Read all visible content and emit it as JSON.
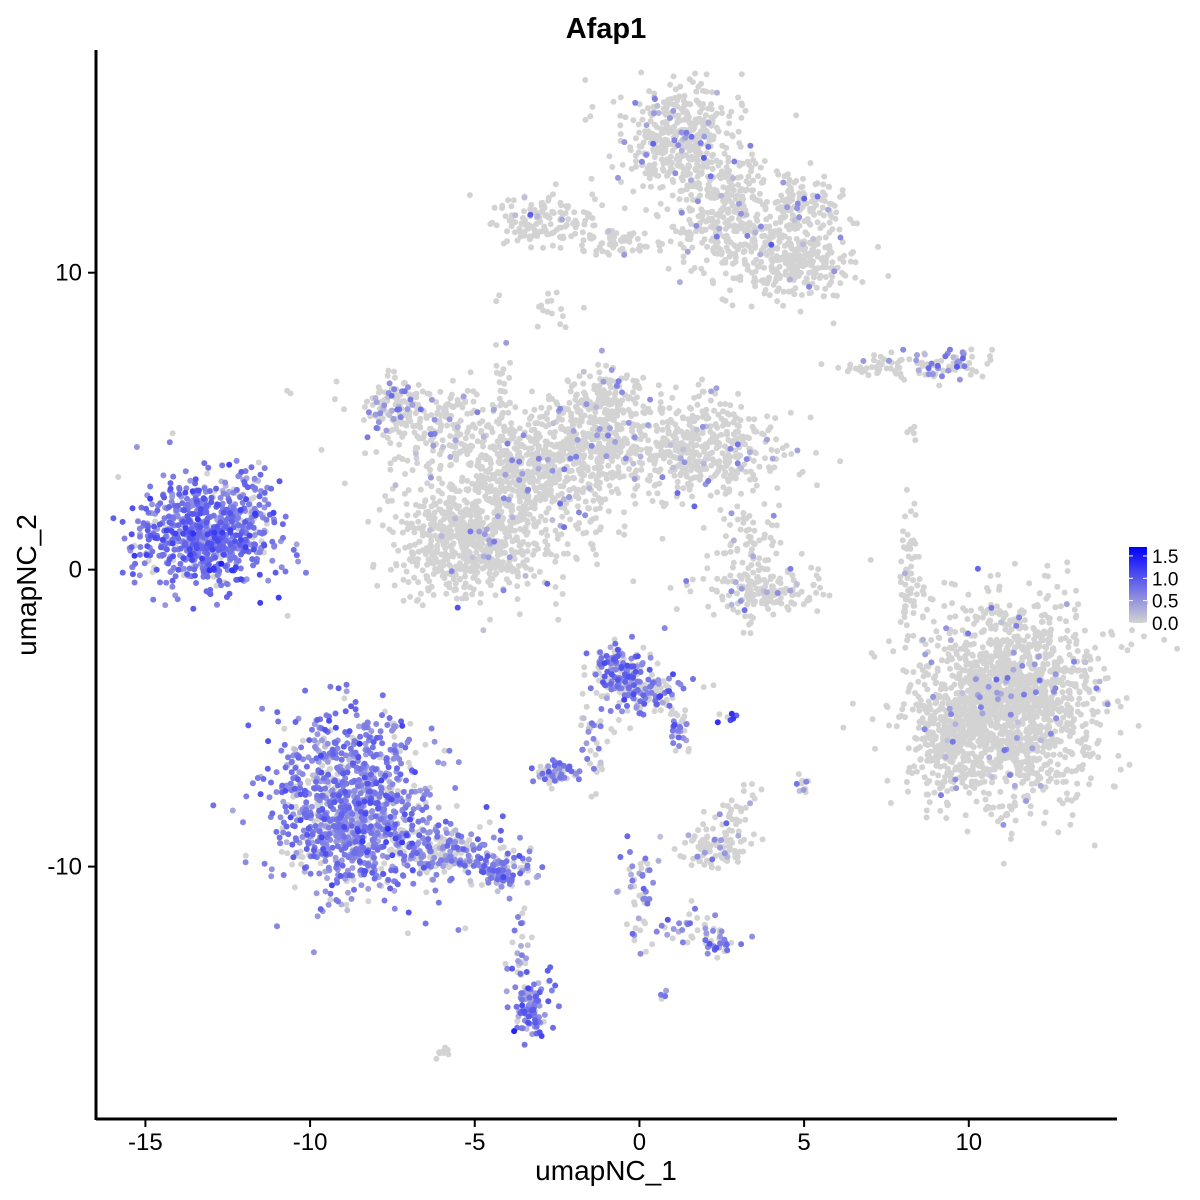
{
  "chart_data": {
    "type": "scatter",
    "title": "Afap1",
    "xlabel": "umapNC_1",
    "ylabel": "umapNC_2",
    "xlim": [
      -16.5,
      14.5
    ],
    "ylim": [
      -18.5,
      17.5
    ],
    "x_ticks": [
      -15,
      -10,
      -5,
      0,
      5,
      10
    ],
    "x_tick_labels": [
      "-15",
      "-10",
      "-5",
      "0",
      "5",
      "10"
    ],
    "y_ticks": [
      -10,
      0,
      10
    ],
    "y_tick_labels": [
      "-10",
      "0",
      "10"
    ],
    "grid": false,
    "color_scale": {
      "low_color": "#d3d3d3",
      "high_color": "#0000ff",
      "min": 0.0,
      "max": 1.7,
      "legend_ticks": [
        0.0,
        0.5,
        1.0,
        1.5
      ],
      "legend_labels": [
        "0.0",
        "0.5",
        "1.0",
        "1.5"
      ],
      "legend_position": "right"
    },
    "clusters": [
      {
        "cx": -13.2,
        "cy": 1.2,
        "sx": 1.05,
        "sy": 0.95,
        "n": 700,
        "p_expr": 0.92,
        "mean_expr": 0.75
      },
      {
        "cx": -11.8,
        "cy": 1.7,
        "sx": 0.35,
        "sy": 0.7,
        "n": 60,
        "p_expr": 0.6,
        "mean_expr": 0.55
      },
      {
        "cx": -8.7,
        "cy": -8.0,
        "sx": 1.2,
        "sy": 1.5,
        "n": 1100,
        "p_expr": 0.78,
        "mean_expr": 0.65
      },
      {
        "cx": -6.0,
        "cy": -9.6,
        "sx": 1.0,
        "sy": 0.45,
        "n": 220,
        "p_expr": 0.65,
        "mean_expr": 0.6
      },
      {
        "cx": -4.2,
        "cy": -10.2,
        "sx": 0.5,
        "sy": 0.3,
        "n": 90,
        "p_expr": 0.7,
        "mean_expr": 0.6
      },
      {
        "cx": -3.3,
        "cy": -14.8,
        "sx": 0.3,
        "sy": 0.55,
        "n": 90,
        "p_expr": 0.9,
        "mean_expr": 0.7
      },
      {
        "cx": -3.6,
        "cy": -12.8,
        "sx": 0.2,
        "sy": 0.9,
        "n": 25,
        "p_expr": 0.5,
        "mean_expr": 0.5
      },
      {
        "cx": -5.2,
        "cy": 1.0,
        "sx": 1.15,
        "sy": 1.0,
        "n": 700,
        "p_expr": 0.04,
        "mean_expr": 0.45
      },
      {
        "cx": -3.6,
        "cy": 3.2,
        "sx": 1.0,
        "sy": 0.9,
        "n": 350,
        "p_expr": 0.05,
        "mean_expr": 0.45
      },
      {
        "cx": -1.6,
        "cy": 4.0,
        "sx": 1.0,
        "sy": 0.8,
        "n": 350,
        "p_expr": 0.05,
        "mean_expr": 0.45
      },
      {
        "cx": -6.2,
        "cy": 4.8,
        "sx": 1.1,
        "sy": 0.8,
        "n": 220,
        "p_expr": 0.1,
        "mean_expr": 0.45
      },
      {
        "cx": -7.5,
        "cy": 5.5,
        "sx": 0.4,
        "sy": 0.5,
        "n": 80,
        "p_expr": 0.4,
        "mean_expr": 0.5
      },
      {
        "cx": -4.2,
        "cy": 5.8,
        "sx": 0.2,
        "sy": 1.3,
        "n": 30,
        "p_expr": 0.05,
        "mean_expr": 0.4
      },
      {
        "cx": -1.2,
        "cy": 5.6,
        "sx": 0.7,
        "sy": 0.6,
        "n": 160,
        "p_expr": 0.08,
        "mean_expr": 0.45
      },
      {
        "cx": 1.8,
        "cy": 4.1,
        "sx": 1.3,
        "sy": 0.85,
        "n": 450,
        "p_expr": 0.05,
        "mean_expr": 0.45
      },
      {
        "cx": -1.9,
        "cy": 1.6,
        "sx": 0.8,
        "sy": 0.5,
        "n": 40,
        "p_expr": 0.15,
        "mean_expr": 0.45
      },
      {
        "cx": 1.2,
        "cy": 14.5,
        "sx": 0.9,
        "sy": 0.9,
        "n": 420,
        "p_expr": 0.06,
        "mean_expr": 0.45
      },
      {
        "cx": 2.6,
        "cy": 12.0,
        "sx": 0.9,
        "sy": 1.0,
        "n": 320,
        "p_expr": 0.06,
        "mean_expr": 0.45
      },
      {
        "cx": 4.6,
        "cy": 10.4,
        "sx": 0.9,
        "sy": 0.7,
        "n": 280,
        "p_expr": 0.05,
        "mean_expr": 0.45
      },
      {
        "cx": 5.0,
        "cy": 12.2,
        "sx": 0.6,
        "sy": 0.5,
        "n": 120,
        "p_expr": 0.06,
        "mean_expr": 0.45
      },
      {
        "cx": -2.8,
        "cy": 11.7,
        "sx": 0.8,
        "sy": 0.4,
        "n": 140,
        "p_expr": 0.03,
        "mean_expr": 0.45
      },
      {
        "cx": -0.6,
        "cy": 11.0,
        "sx": 0.8,
        "sy": 0.2,
        "n": 60,
        "p_expr": 0.03,
        "mean_expr": 0.45
      },
      {
        "cx": -2.7,
        "cy": 8.8,
        "sx": 0.3,
        "sy": 0.35,
        "n": 15,
        "p_expr": 0.0,
        "mean_expr": 0.4
      },
      {
        "cx": 7.3,
        "cy": 6.9,
        "sx": 0.7,
        "sy": 0.18,
        "n": 45,
        "p_expr": 0.08,
        "mean_expr": 0.45
      },
      {
        "cx": 9.4,
        "cy": 7.0,
        "sx": 0.6,
        "sy": 0.3,
        "n": 70,
        "p_expr": 0.3,
        "mean_expr": 0.6
      },
      {
        "cx": 8.2,
        "cy": 4.7,
        "sx": 0.2,
        "sy": 0.3,
        "n": 6,
        "p_expr": 0.0,
        "mean_expr": 0.4
      },
      {
        "cx": 3.3,
        "cy": 0.6,
        "sx": 0.45,
        "sy": 0.9,
        "n": 90,
        "p_expr": 0.04,
        "mean_expr": 0.45
      },
      {
        "cx": 3.8,
        "cy": -0.7,
        "sx": 0.9,
        "sy": 0.35,
        "n": 140,
        "p_expr": 0.08,
        "mean_expr": 0.45
      },
      {
        "cx": 8.2,
        "cy": -0.2,
        "sx": 0.15,
        "sy": 1.2,
        "n": 60,
        "p_expr": 0.02,
        "mean_expr": 0.4
      },
      {
        "cx": 11.2,
        "cy": -4.5,
        "sx": 1.4,
        "sy": 1.6,
        "n": 1700,
        "p_expr": 0.04,
        "mean_expr": 0.45
      },
      {
        "cx": 9.3,
        "cy": -5.8,
        "sx": 0.5,
        "sy": 0.9,
        "n": 200,
        "p_expr": 0.02,
        "mean_expr": 0.4
      },
      {
        "cx": -0.5,
        "cy": -3.6,
        "sx": 0.45,
        "sy": 0.55,
        "n": 180,
        "p_expr": 0.6,
        "mean_expr": 0.7
      },
      {
        "cx": 0.5,
        "cy": -4.2,
        "sx": 0.45,
        "sy": 0.4,
        "n": 90,
        "p_expr": 0.55,
        "mean_expr": 0.75
      },
      {
        "cx": 1.2,
        "cy": -5.4,
        "sx": 0.2,
        "sy": 0.4,
        "n": 30,
        "p_expr": 0.6,
        "mean_expr": 0.7
      },
      {
        "cx": -1.4,
        "cy": -5.8,
        "sx": 0.25,
        "sy": 0.7,
        "n": 40,
        "p_expr": 0.25,
        "mean_expr": 0.5
      },
      {
        "cx": -2.5,
        "cy": -6.9,
        "sx": 0.4,
        "sy": 0.2,
        "n": 60,
        "p_expr": 0.55,
        "mean_expr": 0.6
      },
      {
        "cx": 2.8,
        "cy": -5.0,
        "sx": 0.15,
        "sy": 0.12,
        "n": 8,
        "p_expr": 0.6,
        "mean_expr": 1.2
      },
      {
        "cx": 2.3,
        "cy": -9.4,
        "sx": 0.55,
        "sy": 0.3,
        "n": 90,
        "p_expr": 0.08,
        "mean_expr": 0.5
      },
      {
        "cx": 2.8,
        "cy": -8.5,
        "sx": 0.3,
        "sy": 0.4,
        "n": 30,
        "p_expr": 0.03,
        "mean_expr": 0.45
      },
      {
        "cx": 0.0,
        "cy": -11.0,
        "sx": 0.3,
        "sy": 0.9,
        "n": 50,
        "p_expr": 0.6,
        "mean_expr": 0.6
      },
      {
        "cx": 1.6,
        "cy": -12.0,
        "sx": 0.7,
        "sy": 0.3,
        "n": 35,
        "p_expr": 0.45,
        "mean_expr": 0.55
      },
      {
        "cx": 2.4,
        "cy": -12.6,
        "sx": 0.25,
        "sy": 0.2,
        "n": 25,
        "p_expr": 0.7,
        "mean_expr": 0.6
      },
      {
        "cx": 5.0,
        "cy": -7.2,
        "sx": 0.12,
        "sy": 0.25,
        "n": 10,
        "p_expr": 0.5,
        "mean_expr": 0.55
      },
      {
        "cx": 3.4,
        "cy": -7.6,
        "sx": 0.15,
        "sy": 0.3,
        "n": 8,
        "p_expr": 0.4,
        "mean_expr": 0.5
      },
      {
        "cx": -6.0,
        "cy": -16.3,
        "sx": 0.15,
        "sy": 0.1,
        "n": 8,
        "p_expr": 0.0,
        "mean_expr": 0.4
      },
      {
        "cx": 0.7,
        "cy": -14.3,
        "sx": 0.1,
        "sy": 0.1,
        "n": 4,
        "p_expr": 0.9,
        "mean_expr": 0.55
      },
      {
        "cx": -10.6,
        "cy": 6.0,
        "sx": 0.1,
        "sy": 0.1,
        "n": 2,
        "p_expr": 0.0,
        "mean_expr": 0.4
      }
    ]
  }
}
